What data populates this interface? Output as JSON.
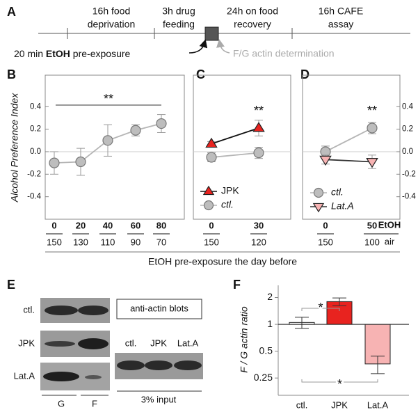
{
  "panel_labels": [
    "A",
    "B",
    "C",
    "D",
    "E",
    "F"
  ],
  "timeline": {
    "steps": [
      [
        "16h food",
        "deprivation"
      ],
      [
        "3h drug",
        "feeding"
      ],
      [
        "24h on food",
        "recovery"
      ],
      [
        "16h CAFE",
        "assay"
      ]
    ],
    "pre_exposure": [
      "20 min ",
      "EtOH",
      " pre-exposure"
    ],
    "determination": "F/G actin determination"
  },
  "x_axis_label": "EtOH pre-exposure the day before",
  "axis_key": [
    "EtOH",
    "air"
  ],
  "chart_data": [
    {
      "type": "line",
      "ylabel": "Alcohol Preference Index",
      "categories": [
        "0",
        "20",
        "40",
        "60",
        "80"
      ],
      "categories2": [
        "150",
        "130",
        "110",
        "90",
        "70"
      ],
      "series": [
        {
          "name": "ctl.",
          "color": "#bdbdbd",
          "line_color": "#b5b5b5",
          "marker": "circle",
          "values": [
            -0.1,
            -0.09,
            0.1,
            0.19,
            0.25
          ],
          "errors": [
            0.1,
            0.12,
            0.14,
            0.05,
            0.08
          ]
        }
      ],
      "ylim": [
        -0.6,
        0.68
      ],
      "yticks": [
        0.4,
        0.2,
        {
          "value": 0,
          "label": "0.0"
        },
        -0.2,
        -0.4
      ],
      "axis": "left",
      "annotation": "**",
      "legend": false
    },
    {
      "type": "line",
      "categories": [
        "0",
        "30"
      ],
      "categories2": [
        "150",
        "120"
      ],
      "series": [
        {
          "name": "JPK",
          "color": "#e8231f",
          "line_color": "#111111",
          "marker": "triangle-up",
          "values": [
            0.07,
            0.21
          ],
          "errors": [
            0.02,
            0.07
          ]
        },
        {
          "name": "ctl.",
          "color": "#bdbdbd",
          "line_color": "#b5b5b5",
          "marker": "circle",
          "values": [
            -0.05,
            -0.01
          ],
          "errors": [
            0.04,
            0.05
          ]
        }
      ],
      "ylim": [
        -0.6,
        0.68
      ],
      "annotation": "**",
      "legend": true
    },
    {
      "type": "line",
      "categories": [
        "0",
        "50"
      ],
      "categories2": [
        "150",
        "100"
      ],
      "series": [
        {
          "name": "ctl.",
          "color": "#bdbdbd",
          "line_color": "#b5b5b5",
          "marker": "circle",
          "values": [
            0.0,
            0.21
          ],
          "errors": [
            0.05,
            0.05
          ]
        },
        {
          "name": "Lat.A",
          "color": "#f7b3b3",
          "line_color": "#333333",
          "marker": "triangle-down",
          "values": [
            -0.07,
            -0.09
          ],
          "errors": [
            0.04,
            0.06
          ]
        }
      ],
      "ylim": [
        -0.6,
        0.68
      ],
      "yticks": [
        0.4,
        0.2,
        {
          "value": 0,
          "label": "0.0"
        },
        -0.2,
        -0.4
      ],
      "axis": "right",
      "annotation": "**",
      "legend": true
    },
    {
      "type": "bar",
      "ylabel": "F / G actin ratio",
      "log_scale": true,
      "categories": [
        "ctl.",
        "JPK",
        "Lat.A"
      ],
      "values": [
        1.05,
        1.8,
        0.36
      ],
      "errors": [
        0.15,
        0.18,
        0.08
      ],
      "colors": [
        "#ffffff",
        "#e8231f",
        "#f7b3b3"
      ],
      "ylim": [
        0.16,
        2.74
      ],
      "yticks": [
        0.25,
        0.5,
        1,
        2
      ],
      "annotations": [
        "*",
        "*"
      ]
    }
  ],
  "blots": {
    "rows": [
      "ctl.",
      "JPK",
      "Lat.A"
    ],
    "columns": [
      "G",
      "F"
    ],
    "title": "anti-actin blots",
    "input_lanes": [
      "ctl.",
      "JPK",
      "Lat.A"
    ],
    "input_label": "3% input"
  }
}
